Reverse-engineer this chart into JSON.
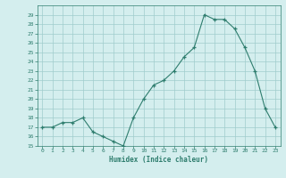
{
  "xlabel": "Humidex (Indice chaleur)",
  "ylabel": "",
  "x_values": [
    0,
    1,
    2,
    3,
    4,
    5,
    6,
    7,
    8,
    9,
    10,
    11,
    12,
    13,
    14,
    15,
    16,
    17,
    18,
    19,
    20,
    21,
    22,
    23
  ],
  "y_values": [
    17,
    17,
    17.5,
    17.5,
    18,
    16.5,
    16,
    15.5,
    15,
    18,
    20,
    21.5,
    22,
    23,
    24.5,
    25.5,
    29,
    28.5,
    28.5,
    27.5,
    25.5,
    23,
    19,
    17
  ],
  "xlim": [
    -0.5,
    23.5
  ],
  "ylim": [
    15,
    30
  ],
  "yticks": [
    15,
    16,
    17,
    18,
    19,
    20,
    21,
    22,
    23,
    24,
    25,
    26,
    27,
    28,
    29
  ],
  "xticks": [
    0,
    1,
    2,
    3,
    4,
    5,
    6,
    7,
    8,
    9,
    10,
    11,
    12,
    13,
    14,
    15,
    16,
    17,
    18,
    19,
    20,
    21,
    22,
    23
  ],
  "line_color": "#2e7d6e",
  "marker_color": "#2e7d6e",
  "bg_color": "#d4eeee",
  "grid_color": "#a0cccc",
  "label_color": "#2e7d6e",
  "tick_color": "#2e7d6e",
  "font": "monospace"
}
